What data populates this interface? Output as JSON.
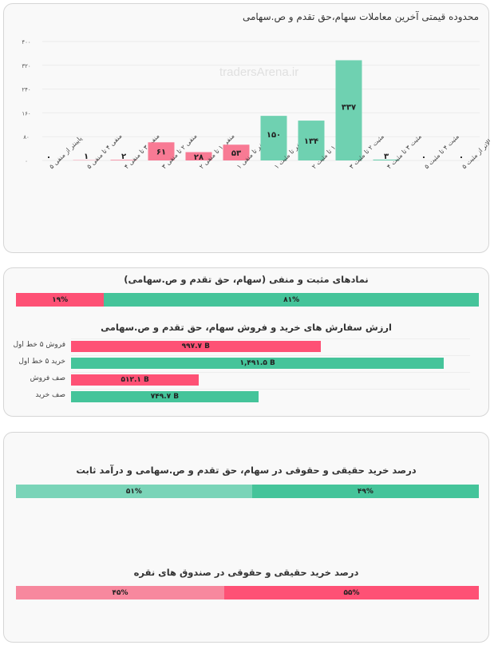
{
  "watermark": "tradersArena.ir",
  "colors": {
    "pink": "#fe5175",
    "green": "#45c49a",
    "chart_pink": "#f87a94",
    "chart_green": "#6fd1b1",
    "light_green": "#7ad4b8",
    "light_pink": "#f7889e"
  },
  "chart_data": {
    "type": "bar",
    "title": "محدوده قیمتی آخرین معاملات سهام،حق تقدم و ص.سهامی",
    "categories": [
      "پایینتر از منفی ۵",
      "منفی ۴ تا منفی ۵",
      "منفی ۳ تا منفی ۴",
      "منفی ۲ تا منفی ۳",
      "منفی ۱ تا منفی ۲",
      "صفر تا منفی ۱",
      "صفر تا مثبت ۱",
      "مثبت ۱ تا مثبت ۲",
      "مثبت ۲ تا مثبت ۳",
      "مثبت ۳ تا مثبت ۴",
      "مثبت ۴ تا مثبت ۵",
      "بالاتر از مثبت ۵"
    ],
    "values": [
      0,
      1,
      2,
      61,
      28,
      53,
      150,
      134,
      337,
      3,
      0,
      0
    ],
    "value_labels": [
      "۰",
      "۱",
      "۲",
      "۶۱",
      "۲۸",
      "۵۳",
      "۱۵۰",
      "۱۳۴",
      "۳۳۷",
      "۳",
      "۰",
      "۰"
    ],
    "ylim": [
      0,
      400
    ],
    "yticks": [
      0,
      80,
      160,
      240,
      320,
      400
    ],
    "ytick_labels": [
      "۰",
      "۸۰",
      "۱۶۰",
      "۲۴۰",
      "۳۲۰",
      "۴۰۰"
    ],
    "grid": true
  },
  "positive_negative": {
    "title": "نمادهای مثبت و منفی (سهام، حق تقدم و ص.سهامی)",
    "negative_pct": 19,
    "positive_pct": 81,
    "negative_label": "۱۹%",
    "positive_label": "۸۱%"
  },
  "orders": {
    "title": "ارزش سفارش های خرید و فروش سهام، حق تقدم و ص.سهامی",
    "max": 1500,
    "rows": [
      {
        "label": "فروش ۵ خط اول",
        "value": 997.7,
        "text": "۹۹۷.۷ B",
        "color": "pink"
      },
      {
        "label": "خرید ۵ خط اول",
        "value": 1491.5,
        "text": "۱,۴۹۱.۵ B",
        "color": "green"
      },
      {
        "label": "صف فروش",
        "value": 512.1,
        "text": "۵۱۲.۱ B",
        "color": "pink"
      },
      {
        "label": "صف خرید",
        "value": 749.7,
        "text": "۷۴۹.۷ B",
        "color": "green"
      }
    ]
  },
  "real_stocks": {
    "title": "درصد خرید حقیقی و حقوقی در سهام، حق تقدم و ص.سهامی و درآمد ثابت",
    "left_pct": 51,
    "right_pct": 49,
    "left_label": "۵۱%",
    "right_label": "۴۹%"
  },
  "real_silver": {
    "title": "درصد خرید حقیقی و حقوقی در صندوق های نقره",
    "left_pct": 45,
    "right_pct": 55,
    "left_label": "۴۵%",
    "right_label": "۵۵%"
  }
}
